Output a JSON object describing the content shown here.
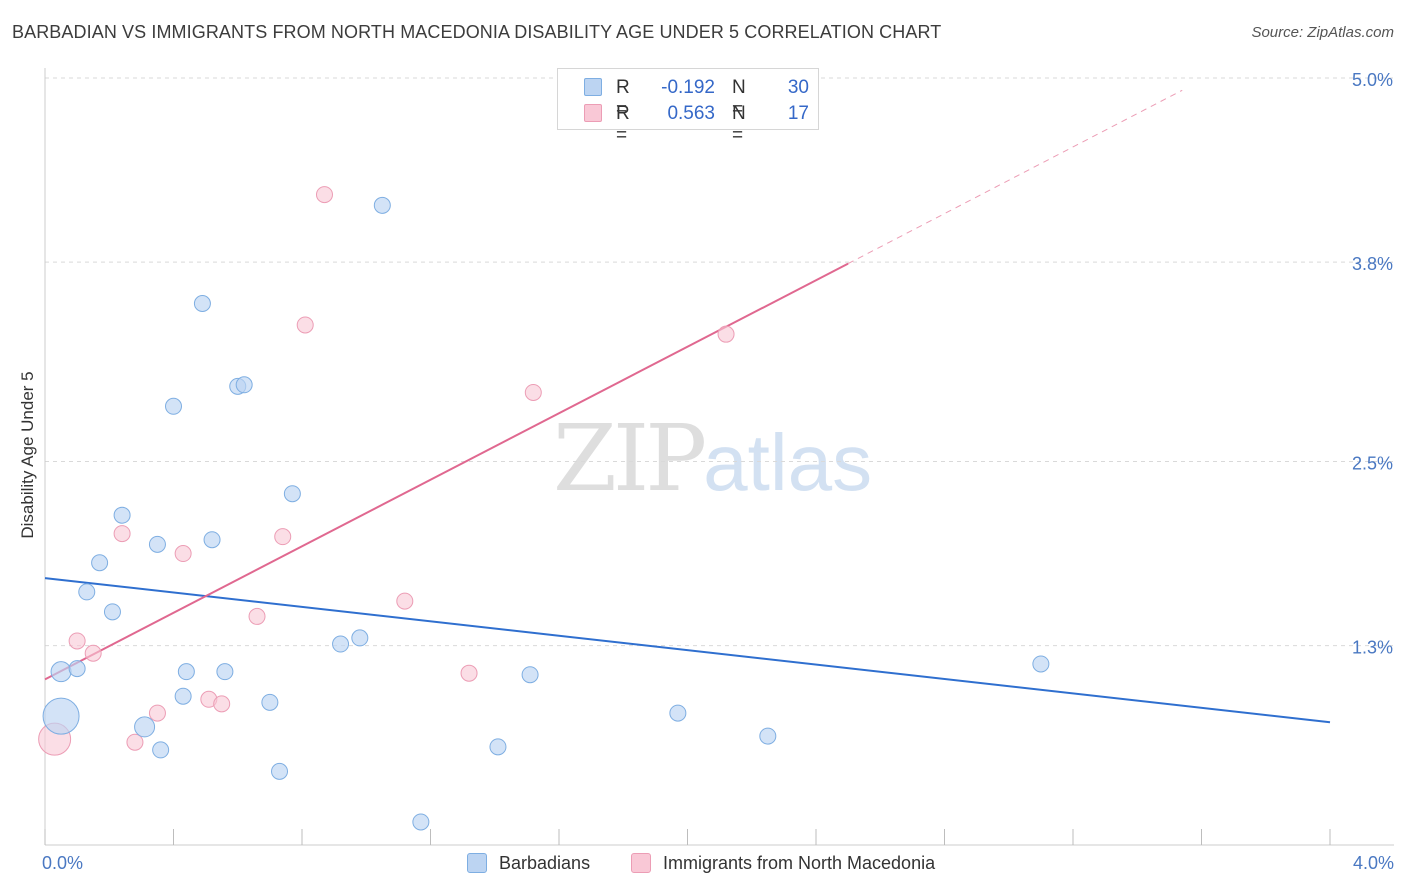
{
  "header": {
    "title": "BARBADIAN VS IMMIGRANTS FROM NORTH MACEDONIA DISABILITY AGE UNDER 5 CORRELATION CHART",
    "source": "Source: ZipAtlas.com"
  },
  "watermark": {
    "zip": "ZIP",
    "atlas": "atlas"
  },
  "legend": {
    "rows": [
      {
        "r_label": "R =",
        "r_value": "-0.192",
        "n_label": "N =",
        "n_value": "30"
      },
      {
        "r_label": "R =",
        "r_value": "0.563",
        "n_label": "N =",
        "n_value": "17"
      }
    ]
  },
  "bottom_legend": {
    "series0": "Barbadians",
    "series1": "Immigrants from North Macedonia"
  },
  "colors": {
    "blue_fill": "#bcd4f2",
    "blue_stroke": "#7eaee2",
    "blue_line": "#2f6fcf",
    "pink_fill": "#f9c8d6",
    "pink_stroke": "#ec9db5",
    "pink_line": "#e06890",
    "grid": "#d9d9d9",
    "axis_label": "#4a78c2"
  },
  "chart_data": {
    "type": "scatter",
    "title": "BARBADIAN VS IMMIGRANTS FROM NORTH MACEDONIA DISABILITY AGE UNDER 5 CORRELATION CHART",
    "xlabel": "",
    "ylabel": "Disability Age Under 5",
    "xlim": [
      0.0,
      4.2
    ],
    "ylim": [
      0.0,
      5.0
    ],
    "x_tick_labels": [
      "0.0%",
      "4.0%"
    ],
    "y_ticks": [
      1.3,
      2.5,
      3.8,
      5.0
    ],
    "y_tick_labels": [
      "1.3%",
      "2.5%",
      "3.8%",
      "5.0%"
    ],
    "series": [
      {
        "name": "Barbadians",
        "r": -0.192,
        "n": 30,
        "points": [
          [
            0.05,
            0.84
          ],
          [
            0.05,
            1.13
          ],
          [
            0.1,
            1.15
          ],
          [
            0.13,
            1.65
          ],
          [
            0.17,
            1.84
          ],
          [
            0.21,
            1.52
          ],
          [
            0.24,
            2.15
          ],
          [
            0.31,
            0.77
          ],
          [
            0.36,
            0.62
          ],
          [
            0.35,
            1.96
          ],
          [
            0.4,
            2.86
          ],
          [
            0.43,
            0.97
          ],
          [
            0.44,
            1.13
          ],
          [
            0.49,
            3.53
          ],
          [
            0.52,
            1.99
          ],
          [
            0.56,
            1.13
          ],
          [
            0.6,
            2.99
          ],
          [
            0.62,
            3.0
          ],
          [
            0.7,
            0.93
          ],
          [
            0.73,
            0.48
          ],
          [
            0.77,
            2.29
          ],
          [
            0.92,
            1.31
          ],
          [
            0.98,
            1.35
          ],
          [
            1.05,
            4.17
          ],
          [
            1.17,
            0.15
          ],
          [
            1.41,
            0.64
          ],
          [
            1.51,
            1.11
          ],
          [
            1.97,
            0.86
          ],
          [
            2.25,
            0.71
          ],
          [
            3.1,
            1.18
          ]
        ],
        "trend": {
          "x": [
            0.0,
            4.0
          ],
          "y": [
            1.74,
            0.8
          ]
        }
      },
      {
        "name": "Immigrants from North Macedonia",
        "r": 0.563,
        "n": 17,
        "points": [
          [
            0.03,
            0.69
          ],
          [
            0.1,
            1.33
          ],
          [
            0.15,
            1.25
          ],
          [
            0.24,
            2.03
          ],
          [
            0.28,
            0.67
          ],
          [
            0.35,
            0.86
          ],
          [
            0.43,
            1.9
          ],
          [
            0.51,
            0.95
          ],
          [
            0.55,
            0.92
          ],
          [
            0.66,
            1.49
          ],
          [
            0.74,
            2.01
          ],
          [
            0.81,
            3.39
          ],
          [
            0.87,
            4.24
          ],
          [
            1.12,
            1.59
          ],
          [
            1.32,
            1.12
          ],
          [
            1.52,
            2.95
          ],
          [
            2.12,
            3.33
          ]
        ],
        "trend": {
          "x": [
            0.0,
            2.5
          ],
          "y": [
            1.08,
            3.79
          ]
        },
        "trend_extension": {
          "x": [
            2.5,
            3.54
          ],
          "y": [
            3.79,
            4.92
          ]
        }
      }
    ]
  }
}
